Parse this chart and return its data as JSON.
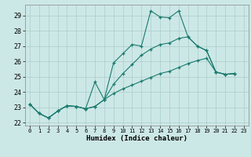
{
  "xlabel": "Humidex (Indice chaleur)",
  "bg_color": "#cce8e6",
  "grid_color": "#aaccca",
  "line_color": "#1a7a6e",
  "xlim": [
    -0.5,
    23.5
  ],
  "ylim": [
    21.8,
    29.7
  ],
  "xticks": [
    0,
    1,
    2,
    3,
    4,
    5,
    6,
    7,
    8,
    9,
    10,
    11,
    12,
    13,
    14,
    15,
    16,
    17,
    18,
    19,
    20,
    21,
    22,
    23
  ],
  "yticks": [
    22,
    23,
    24,
    25,
    26,
    27,
    28,
    29
  ],
  "xs1": [
    0,
    1,
    2,
    3,
    4,
    5,
    6,
    7,
    8,
    9,
    10,
    11,
    12,
    13,
    14,
    15,
    16,
    17,
    18,
    19,
    20,
    21,
    22
  ],
  "ys1": [
    23.2,
    22.6,
    22.3,
    22.75,
    23.1,
    23.05,
    22.9,
    24.65,
    23.5,
    25.9,
    26.5,
    27.1,
    27.0,
    29.3,
    28.9,
    28.85,
    29.3,
    27.6,
    27.0,
    26.7,
    25.3,
    25.15,
    25.2
  ],
  "xs2": [
    0,
    1,
    2,
    3,
    4,
    5,
    6,
    7,
    8,
    9,
    10,
    11,
    12,
    13,
    14,
    15,
    16,
    17,
    18,
    19,
    20,
    21,
    22
  ],
  "ys2": [
    23.2,
    22.6,
    22.3,
    22.75,
    23.1,
    23.05,
    22.9,
    23.05,
    23.5,
    24.5,
    25.2,
    25.8,
    26.4,
    26.8,
    27.1,
    27.2,
    27.5,
    27.6,
    27.0,
    26.7,
    25.3,
    25.15,
    25.2
  ],
  "xs3": [
    0,
    1,
    2,
    3,
    4,
    5,
    6,
    7,
    8,
    9,
    10,
    11,
    12,
    13,
    14,
    15,
    16,
    17,
    18,
    19,
    20,
    21,
    22
  ],
  "ys3": [
    23.2,
    22.6,
    22.3,
    22.75,
    23.1,
    23.05,
    22.9,
    23.05,
    23.5,
    23.9,
    24.2,
    24.45,
    24.7,
    24.95,
    25.2,
    25.35,
    25.6,
    25.85,
    26.05,
    26.2,
    25.3,
    25.15,
    25.2
  ]
}
